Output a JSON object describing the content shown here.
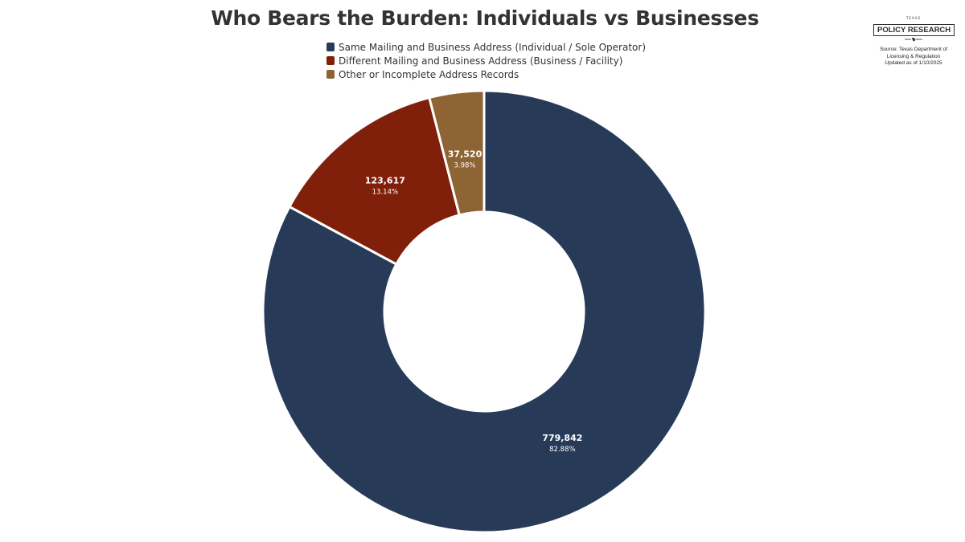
{
  "chart_data": {
    "type": "pie",
    "title": "Who Bears the Burden: Individuals vs Businesses",
    "donut": true,
    "legend_position": "top",
    "slices": [
      {
        "label": "Same Mailing and Business Address (Individual / Sole Operator)",
        "value": 779842,
        "percent_label": "82.88%",
        "value_label": "779,842",
        "color": "#273b59"
      },
      {
        "label": "Different Mailing and Business Address (Business / Facility)",
        "value": 123617,
        "percent_label": "13.14%",
        "value_label": "123,617",
        "color": "#81200a"
      },
      {
        "label": "Other or Incomplete Address Records",
        "value": 37520,
        "percent_label": "3.98%",
        "value_label": "37,520",
        "color": "#8e6434"
      }
    ]
  },
  "branding": {
    "org_small": "TEXAS",
    "org_name": "POLICY RESEARCH",
    "source_lines": [
      "Source: Texas Department of",
      "Licensing & Regulation",
      "Updated as of 1/10/2025"
    ]
  }
}
